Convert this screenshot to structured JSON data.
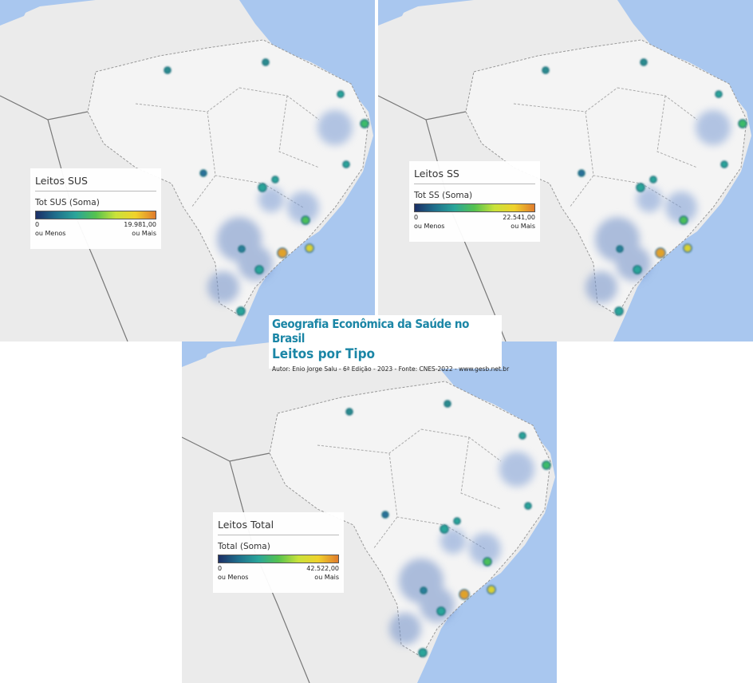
{
  "header": {
    "title": "Geografia Econômica da Saúde no Brasil",
    "subtitle": "Leitos por Tipo",
    "credit": "Autor: Enio Jorge Salu - 6ª Edição - 2023 - Fonte: CNES-2022 - www.gesb.net.br"
  },
  "maps": [
    {
      "legend_title": "Leitos SUS",
      "measure": "Tot SUS (Soma)",
      "min": "0",
      "max": "19.981,00",
      "min_note": "ou Menos",
      "max_note": "ou Mais"
    },
    {
      "legend_title": "Leitos SS",
      "measure": "Tot SS (Soma)",
      "min": "0",
      "max": "22.541,00",
      "min_note": "ou Menos",
      "max_note": "ou Mais"
    },
    {
      "legend_title": "Leitos Total",
      "measure": "Total (Soma)",
      "min": "0",
      "max": "42.522,00",
      "min_note": "ou Menos",
      "max_note": "ou Mais"
    }
  ]
}
